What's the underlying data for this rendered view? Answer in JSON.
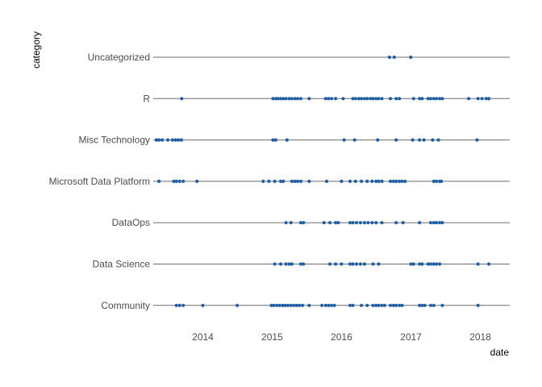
{
  "chart_data": {
    "type": "scatter",
    "title": "",
    "xlabel": "date",
    "ylabel": "category",
    "xlim": [
      "2013-04-15",
      "2018-06-05"
    ],
    "x_ticks": [
      {
        "date": "2014-01-01",
        "label": "2014"
      },
      {
        "date": "2015-01-01",
        "label": "2015"
      },
      {
        "date": "2016-01-01",
        "label": "2016"
      },
      {
        "date": "2017-01-01",
        "label": "2017"
      },
      {
        "date": "2018-01-01",
        "label": "2018"
      }
    ],
    "grid": "horizontal lines at each category",
    "legend": "none",
    "point_color": "#1f5fa5",
    "line_color": "#6b6b6b",
    "categories": [
      "Uncategorized",
      "R",
      "Misc Technology",
      "Microsoft Data Platform",
      "DataOps",
      "Data Science",
      "Community"
    ],
    "series": [
      {
        "category": "Uncategorized",
        "dates": [
          "2016-09-10",
          "2016-10-05",
          "2016-12-31"
        ]
      },
      {
        "category": "R",
        "dates": [
          "2013-09-12",
          "2015-01-05",
          "2015-01-20",
          "2015-02-01",
          "2015-02-15",
          "2015-03-01",
          "2015-03-15",
          "2015-04-01",
          "2015-04-15",
          "2015-05-01",
          "2015-05-15",
          "2015-06-01",
          "2015-07-15",
          "2015-10-10",
          "2015-10-25",
          "2015-11-10",
          "2015-12-01",
          "2016-01-10",
          "2016-03-01",
          "2016-03-15",
          "2016-04-01",
          "2016-04-15",
          "2016-05-01",
          "2016-05-15",
          "2016-06-01",
          "2016-06-15",
          "2016-07-01",
          "2016-07-15",
          "2016-08-01",
          "2016-09-15",
          "2016-10-15",
          "2016-11-01",
          "2017-01-15",
          "2017-02-15",
          "2017-03-01",
          "2017-04-01",
          "2017-04-15",
          "2017-05-01",
          "2017-05-15",
          "2017-06-01",
          "2017-06-15",
          "2017-11-01",
          "2017-12-20",
          "2018-01-10",
          "2018-02-01",
          "2018-02-15"
        ]
      },
      {
        "category": "Misc Technology",
        "dates": [
          "2013-05-01",
          "2013-05-15",
          "2013-06-01",
          "2013-07-01",
          "2013-07-25",
          "2013-08-10",
          "2013-08-25",
          "2013-09-10",
          "2015-01-05",
          "2015-01-20",
          "2015-03-20",
          "2016-01-15",
          "2016-03-10",
          "2016-07-10",
          "2016-10-15",
          "2017-01-10",
          "2017-02-15",
          "2017-03-10",
          "2017-04-25",
          "2017-05-25",
          "2017-12-15"
        ]
      },
      {
        "category": "Microsoft Data Platform",
        "dates": [
          "2013-05-15",
          "2013-08-01",
          "2013-08-15",
          "2013-09-01",
          "2013-09-20",
          "2013-12-01",
          "2014-11-15",
          "2014-12-15",
          "2015-01-15",
          "2015-02-15",
          "2015-03-01",
          "2015-04-15",
          "2015-05-01",
          "2015-05-15",
          "2015-06-01",
          "2015-07-15",
          "2015-10-15",
          "2016-01-01",
          "2016-02-15",
          "2016-03-15",
          "2016-04-15",
          "2016-05-15",
          "2016-06-10",
          "2016-07-01",
          "2016-07-15",
          "2016-08-01",
          "2016-09-15",
          "2016-10-01",
          "2016-10-15",
          "2016-11-01",
          "2016-11-15",
          "2016-12-01",
          "2017-05-01",
          "2017-05-15",
          "2017-06-01",
          "2017-06-10"
        ]
      },
      {
        "category": "DataOps",
        "dates": [
          "2015-03-15",
          "2015-04-10",
          "2015-06-01",
          "2015-06-15",
          "2015-10-01",
          "2015-11-01",
          "2015-12-01",
          "2015-12-15",
          "2016-02-15",
          "2016-03-01",
          "2016-03-20",
          "2016-04-10",
          "2016-05-01",
          "2016-05-20",
          "2016-06-10",
          "2016-07-01",
          "2016-08-01",
          "2016-10-15",
          "2016-11-20",
          "2017-02-15",
          "2017-04-15",
          "2017-05-01",
          "2017-05-15",
          "2017-06-01",
          "2017-06-15"
        ]
      },
      {
        "category": "Data Science",
        "dates": [
          "2015-01-15",
          "2015-02-15",
          "2015-03-15",
          "2015-04-01",
          "2015-04-15",
          "2015-06-01",
          "2015-06-15",
          "2015-11-01",
          "2015-12-01",
          "2016-01-01",
          "2016-02-15",
          "2016-03-01",
          "2016-03-20",
          "2016-04-10",
          "2016-05-01",
          "2016-06-15",
          "2016-07-15",
          "2017-01-01",
          "2017-01-15",
          "2017-02-15",
          "2017-03-01",
          "2017-04-01",
          "2017-04-15",
          "2017-05-01",
          "2017-05-15",
          "2017-06-01",
          "2017-12-20",
          "2018-02-15"
        ]
      },
      {
        "category": "Community",
        "dates": [
          "2013-08-15",
          "2013-09-01",
          "2013-09-20",
          "2014-01-01",
          "2014-07-01",
          "2014-12-28",
          "2015-01-10",
          "2015-01-25",
          "2015-02-10",
          "2015-02-25",
          "2015-03-10",
          "2015-03-25",
          "2015-04-10",
          "2015-04-25",
          "2015-05-10",
          "2015-05-25",
          "2015-06-10",
          "2015-07-15",
          "2015-09-20",
          "2015-10-10",
          "2015-10-25",
          "2015-11-10",
          "2015-11-25",
          "2016-02-15",
          "2016-03-01",
          "2016-04-15",
          "2016-05-15",
          "2016-06-15",
          "2016-07-01",
          "2016-07-15",
          "2016-08-01",
          "2016-08-15",
          "2016-09-15",
          "2016-10-01",
          "2016-10-15",
          "2016-11-01",
          "2016-11-15",
          "2017-02-15",
          "2017-03-01",
          "2017-03-15",
          "2017-04-15",
          "2017-05-01",
          "2017-06-15",
          "2017-12-20"
        ]
      }
    ]
  }
}
